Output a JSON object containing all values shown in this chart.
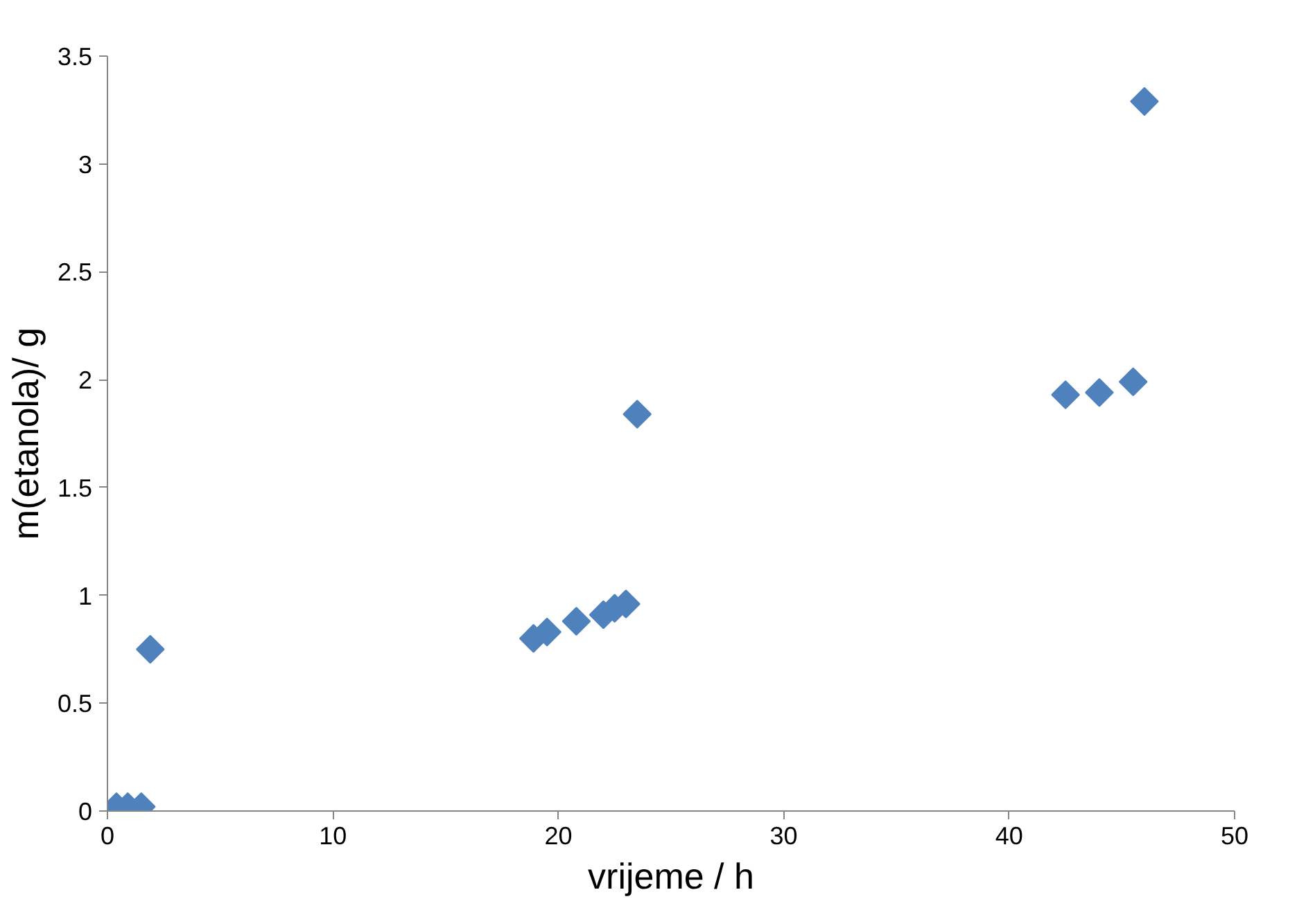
{
  "chart_data": {
    "type": "scatter",
    "xlabel": "vrijeme / h",
    "ylabel": "m(etanola)/ g",
    "x": [
      0.4,
      0.9,
      1.5,
      1.9,
      18.9,
      19.5,
      20.8,
      22.0,
      22.5,
      23.0,
      23.5,
      42.5,
      44.0,
      45.5,
      46.0
    ],
    "series": [
      {
        "color": "#4f81bd",
        "values": [
          0.02,
          0.02,
          0.02,
          0.75,
          0.8,
          0.83,
          0.88,
          0.91,
          0.94,
          0.96,
          1.84,
          1.93,
          1.94,
          1.99,
          3.29
        ]
      }
    ],
    "xlim": [
      0,
      50
    ],
    "xticks": [
      0,
      10,
      20,
      30,
      40,
      50
    ],
    "ylim": [
      0,
      3.5
    ],
    "yticks": [
      0,
      0.5,
      1,
      1.5,
      2,
      2.5,
      3,
      3.5
    ],
    "grid": false,
    "marker": "diamond"
  }
}
